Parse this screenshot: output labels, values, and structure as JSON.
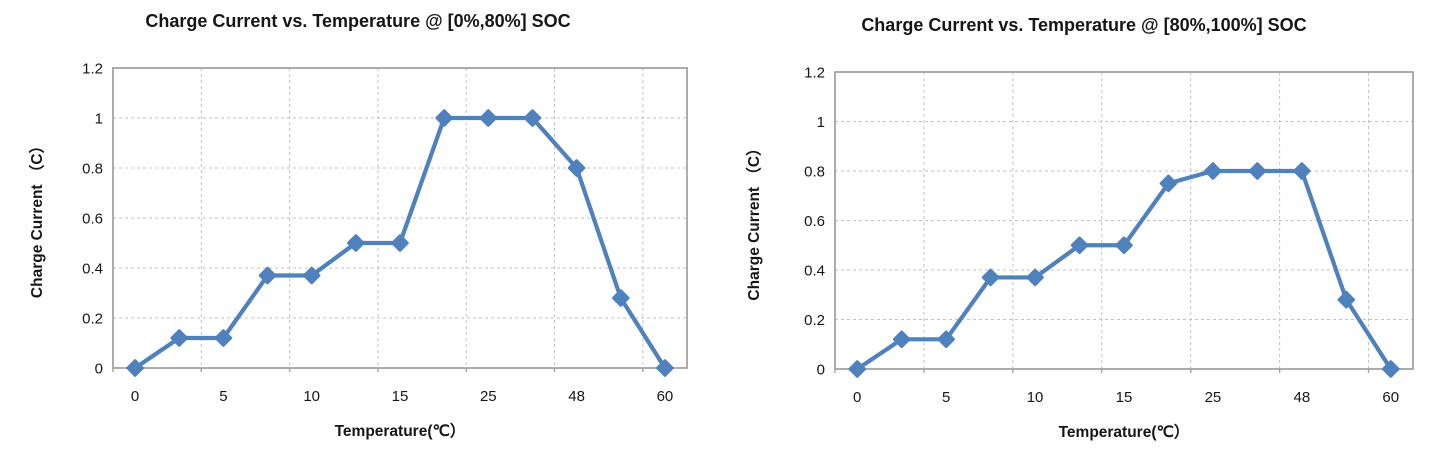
{
  "style": {
    "series_color": "#4f81bd",
    "grid_color": "#c2c2c2",
    "border_color": "#a3a3a3",
    "text_color": "#161616",
    "background": "#ffffff"
  },
  "chart_data": [
    {
      "type": "line",
      "title": "Charge Current vs. Temperature @ [0%,80%] SOC",
      "xlabel": "Temperature(℃）",
      "ylabel": "Charge Current （C）",
      "x_tick_labels": [
        "0",
        "5",
        "10",
        "15",
        "25",
        "48",
        "60"
      ],
      "label_every_n_points": 2,
      "values": [
        0,
        0.12,
        0.12,
        0.37,
        0.37,
        0.5,
        0.5,
        1,
        1,
        1,
        0.8,
        0.28,
        0
      ],
      "y_ticks": [
        0,
        0.2,
        0.4,
        0.6,
        0.8,
        1,
        1.2
      ],
      "ylim": [
        0,
        1.2
      ],
      "marker": "diamond",
      "grid": "dashed-both",
      "legend": "none"
    },
    {
      "type": "line",
      "title": "Charge Current vs. Temperature @ [80%,100%] SOC",
      "xlabel": "Temperature(℃）",
      "ylabel": "Charge Current （C）",
      "x_tick_labels": [
        "0",
        "5",
        "10",
        "15",
        "25",
        "48",
        "60"
      ],
      "label_every_n_points": 2,
      "values": [
        0,
        0.12,
        0.12,
        0.37,
        0.37,
        0.5,
        0.5,
        0.75,
        0.8,
        0.8,
        0.8,
        0.28,
        0
      ],
      "y_ticks": [
        0,
        0.2,
        0.4,
        0.6,
        0.8,
        1,
        1.2
      ],
      "ylim": [
        0,
        1.2
      ],
      "marker": "diamond",
      "grid": "dashed-both",
      "legend": "none"
    }
  ]
}
